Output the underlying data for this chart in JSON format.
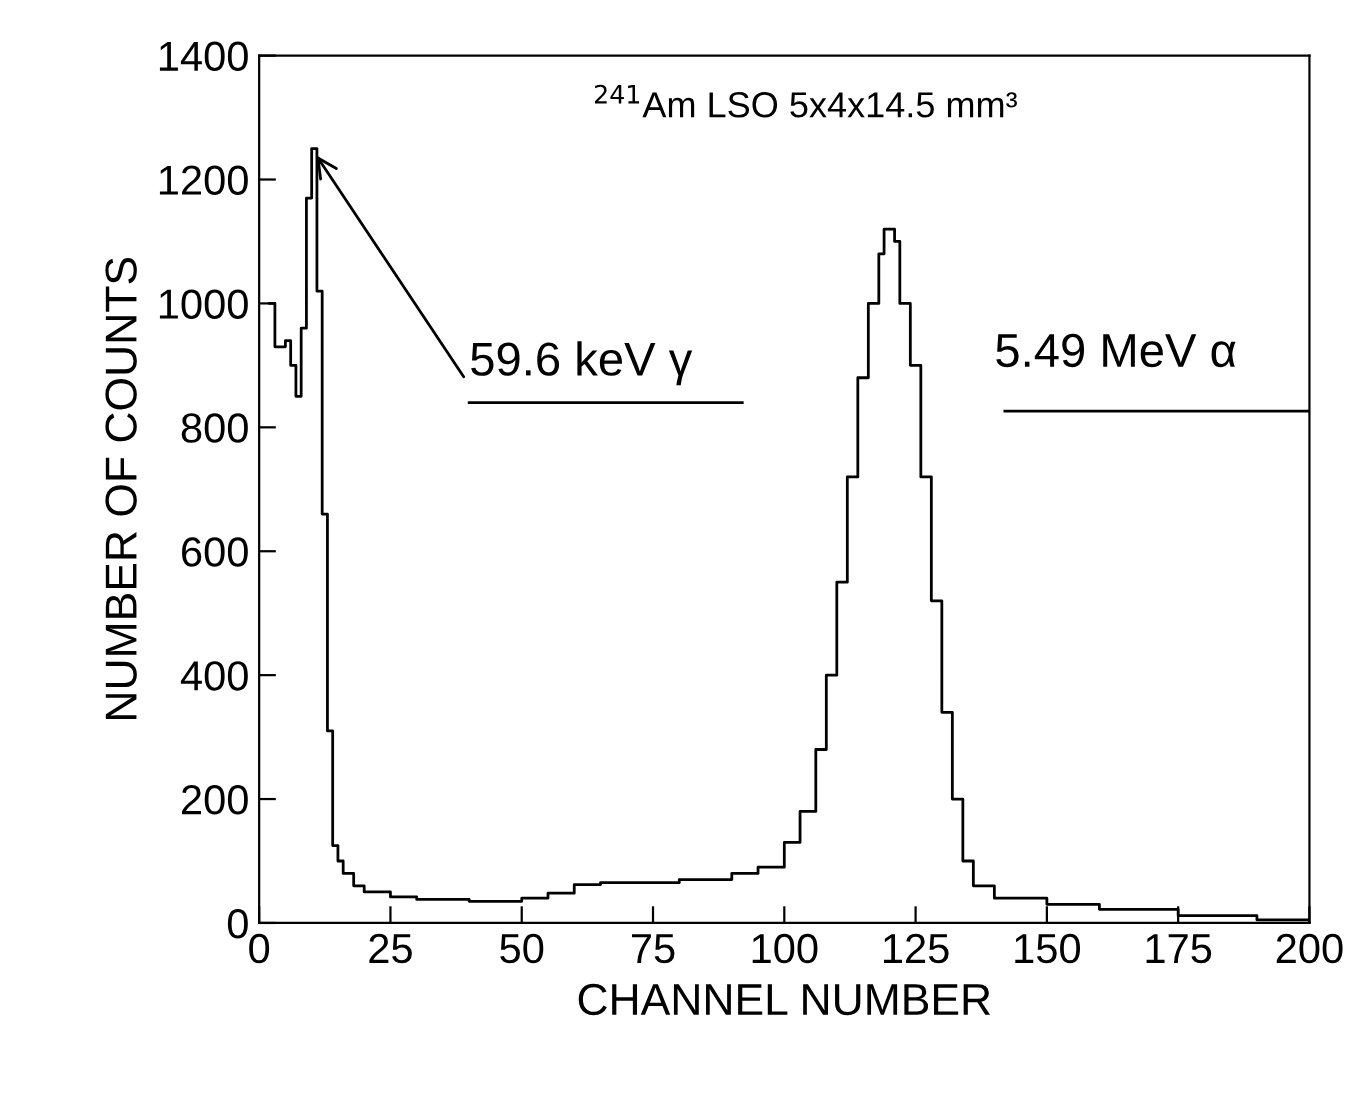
{
  "chart_data": {
    "type": "step",
    "xlabel": "CHANNEL NUMBER",
    "ylabel": "NUMBER OF COUNTS",
    "x": [
      2,
      3,
      4,
      5,
      6,
      7,
      8,
      9,
      10,
      11,
      12,
      13,
      14,
      15,
      16,
      18,
      20,
      25,
      30,
      40,
      50,
      55,
      60,
      65,
      70,
      80,
      90,
      95,
      100,
      103,
      106,
      108,
      110,
      112,
      114,
      116,
      118,
      119,
      120,
      121,
      122,
      124,
      126,
      128,
      130,
      132,
      134,
      136,
      140,
      150,
      160,
      175,
      190,
      200
    ],
    "values": [
      1000,
      930,
      930,
      940,
      900,
      850,
      960,
      1170,
      1250,
      1020,
      660,
      310,
      125,
      100,
      80,
      60,
      50,
      42,
      38,
      35,
      40,
      48,
      62,
      65,
      65,
      70,
      80,
      90,
      130,
      180,
      280,
      400,
      550,
      720,
      880,
      1000,
      1080,
      1120,
      1120,
      1100,
      1000,
      900,
      720,
      520,
      340,
      200,
      100,
      60,
      40,
      30,
      22,
      12,
      5,
      0
    ],
    "color": "#000000",
    "xlim": [
      0,
      200
    ],
    "ylim": [
      0,
      1400
    ],
    "xticks": [
      0,
      25,
      50,
      75,
      100,
      125,
      150,
      175,
      200
    ],
    "yticks": [
      0,
      200,
      400,
      600,
      800,
      1000,
      1200,
      1400
    ],
    "annotations": [
      "$^{241}$Am LSO 5x4x14.5 mm³",
      {
        "text": "59.6 keV γ",
        "x": 10,
        "y": 1250
      },
      "5.49 MeV α"
    ]
  }
}
